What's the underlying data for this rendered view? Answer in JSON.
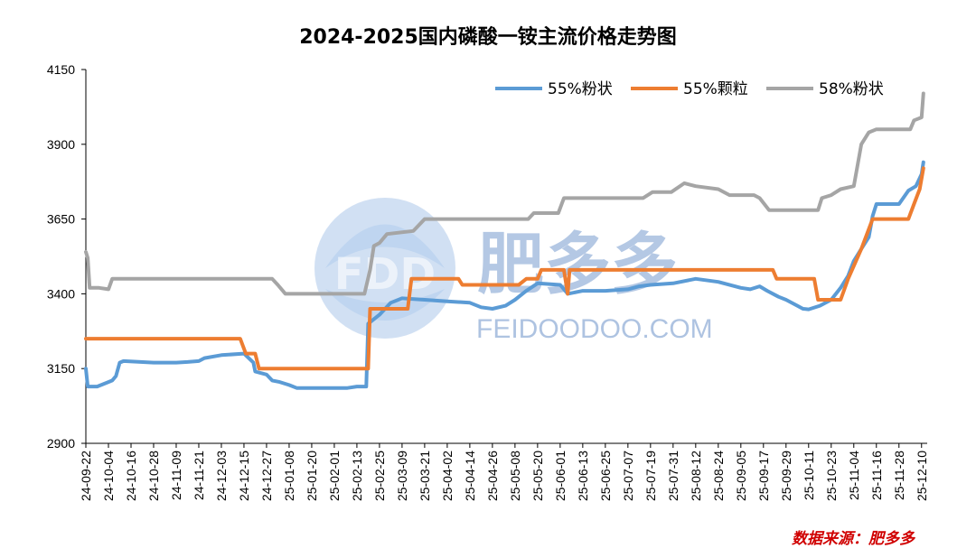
{
  "chart_data": {
    "type": "line",
    "title": "2024-2025国内磷酸一铵主流价格走势图",
    "source": "数据来源：肥多多",
    "ylim": [
      2900,
      4150
    ],
    "yticks": [
      "4150",
      "3900",
      "3650",
      "3400",
      "3150",
      "2900"
    ],
    "xlim": [
      "24-09-22",
      "25-12-13"
    ],
    "x_tick_labels": [
      "24-09-22",
      "24-10-04",
      "24-10-16",
      "24-10-28",
      "24-11-09",
      "24-11-21",
      "24-12-03",
      "24-12-15",
      "24-12-27",
      "25-01-08",
      "25-01-20",
      "25-02-01",
      "25-02-13",
      "25-02-25",
      "25-03-09",
      "25-03-21",
      "25-04-02",
      "25-04-14",
      "25-04-26",
      "25-05-08",
      "25-05-20",
      "25-06-01",
      "25-06-13",
      "25-06-25",
      "25-07-07",
      "25-07-19",
      "25-07-31",
      "25-08-12",
      "25-08-24",
      "25-09-05",
      "25-09-17",
      "25-09-29",
      "25-10-11",
      "25-10-23",
      "25-11-04",
      "25-11-16",
      "25-11-28",
      "25-12-10"
    ],
    "legend_position": "top-right",
    "series": [
      {
        "name": "55%粉状",
        "color": "#5b9bd5",
        "points": [
          [
            "24-09-22",
            3150
          ],
          [
            "24-09-23",
            3090
          ],
          [
            "24-09-28",
            3090
          ],
          [
            "24-10-04",
            3105
          ],
          [
            "24-10-06",
            3110
          ],
          [
            "24-10-08",
            3125
          ],
          [
            "24-10-10",
            3170
          ],
          [
            "24-10-12",
            3175
          ],
          [
            "24-10-28",
            3170
          ],
          [
            "24-11-09",
            3170
          ],
          [
            "24-11-15",
            3172
          ],
          [
            "24-11-21",
            3175
          ],
          [
            "24-11-24",
            3185
          ],
          [
            "24-12-03",
            3195
          ],
          [
            "24-12-15",
            3200
          ],
          [
            "24-12-20",
            3170
          ],
          [
            "24-12-21",
            3140
          ],
          [
            "24-12-27",
            3130
          ],
          [
            "24-12-30",
            3110
          ],
          [
            "25-01-03",
            3105
          ],
          [
            "25-01-08",
            3095
          ],
          [
            "25-01-12",
            3085
          ],
          [
            "25-01-20",
            3085
          ],
          [
            "25-02-08",
            3085
          ],
          [
            "25-02-13",
            3090
          ],
          [
            "25-02-18",
            3090
          ],
          [
            "25-02-19",
            3300
          ],
          [
            "25-02-25",
            3330
          ],
          [
            "25-03-03",
            3370
          ],
          [
            "25-03-09",
            3385
          ],
          [
            "25-03-21",
            3380
          ],
          [
            "25-04-02",
            3375
          ],
          [
            "25-04-14",
            3370
          ],
          [
            "25-04-20",
            3355
          ],
          [
            "25-04-26",
            3350
          ],
          [
            "25-05-03",
            3360
          ],
          [
            "25-05-08",
            3380
          ],
          [
            "25-05-14",
            3410
          ],
          [
            "25-05-20",
            3435
          ],
          [
            "25-06-01",
            3430
          ],
          [
            "25-06-05",
            3400
          ],
          [
            "25-06-13",
            3410
          ],
          [
            "25-06-25",
            3410
          ],
          [
            "25-07-07",
            3415
          ],
          [
            "25-07-13",
            3425
          ],
          [
            "25-07-19",
            3430
          ],
          [
            "25-07-31",
            3435
          ],
          [
            "25-08-12",
            3450
          ],
          [
            "25-08-24",
            3440
          ],
          [
            "25-09-05",
            3420
          ],
          [
            "25-09-10",
            3415
          ],
          [
            "25-09-15",
            3425
          ],
          [
            "25-09-19",
            3410
          ],
          [
            "25-09-25",
            3390
          ],
          [
            "25-09-29",
            3380
          ],
          [
            "25-10-05",
            3360
          ],
          [
            "25-10-08",
            3350
          ],
          [
            "25-10-11",
            3348
          ],
          [
            "25-10-17",
            3360
          ],
          [
            "25-10-23",
            3380
          ],
          [
            "25-10-28",
            3420
          ],
          [
            "25-11-01",
            3460
          ],
          [
            "25-11-04",
            3510
          ],
          [
            "25-11-08",
            3550
          ],
          [
            "25-11-12",
            3590
          ],
          [
            "25-11-14",
            3660
          ],
          [
            "25-11-16",
            3700
          ],
          [
            "25-11-28",
            3700
          ],
          [
            "25-12-03",
            3745
          ],
          [
            "25-12-07",
            3760
          ],
          [
            "25-12-10",
            3800
          ],
          [
            "25-12-11",
            3840
          ]
        ]
      },
      {
        "name": "55%颗粒",
        "color": "#ed7d31",
        "points": [
          [
            "24-09-22",
            3250
          ],
          [
            "24-12-13",
            3250
          ],
          [
            "24-12-16",
            3200
          ],
          [
            "24-12-21",
            3200
          ],
          [
            "24-12-23",
            3150
          ],
          [
            "25-01-08",
            3150
          ],
          [
            "25-02-15",
            3150
          ],
          [
            "25-02-19",
            3150
          ],
          [
            "25-02-20",
            3350
          ],
          [
            "25-02-25",
            3350
          ],
          [
            "25-03-12",
            3350
          ],
          [
            "25-03-14",
            3450
          ],
          [
            "25-04-02",
            3450
          ],
          [
            "25-04-08",
            3450
          ],
          [
            "25-04-10",
            3430
          ],
          [
            "25-05-10",
            3430
          ],
          [
            "25-05-14",
            3450
          ],
          [
            "25-05-20",
            3450
          ],
          [
            "25-05-22",
            3480
          ],
          [
            "25-06-03",
            3480
          ],
          [
            "25-06-05",
            3400
          ],
          [
            "25-06-06",
            3480
          ],
          [
            "25-09-22",
            3480
          ],
          [
            "25-09-24",
            3450
          ],
          [
            "25-10-14",
            3450
          ],
          [
            "25-10-16",
            3380
          ],
          [
            "25-10-28",
            3380
          ],
          [
            "25-11-01",
            3450
          ],
          [
            "25-11-08",
            3550
          ],
          [
            "25-11-14",
            3650
          ],
          [
            "25-12-03",
            3650
          ],
          [
            "25-12-06",
            3700
          ],
          [
            "25-12-09",
            3750
          ],
          [
            "25-12-11",
            3820
          ]
        ]
      },
      {
        "name": "58%粉状",
        "color": "#a5a5a5",
        "points": [
          [
            "24-09-22",
            3540
          ],
          [
            "24-09-23",
            3520
          ],
          [
            "24-09-24",
            3420
          ],
          [
            "24-09-29",
            3420
          ],
          [
            "24-10-04",
            3415
          ],
          [
            "24-10-06",
            3450
          ],
          [
            "24-12-24",
            3450
          ],
          [
            "24-12-30",
            3450
          ],
          [
            "25-01-02",
            3430
          ],
          [
            "25-01-06",
            3400
          ],
          [
            "25-02-17",
            3400
          ],
          [
            "25-02-20",
            3480
          ],
          [
            "25-02-22",
            3560
          ],
          [
            "25-02-25",
            3570
          ],
          [
            "25-03-01",
            3600
          ],
          [
            "25-03-15",
            3610
          ],
          [
            "25-03-21",
            3650
          ],
          [
            "25-05-15",
            3650
          ],
          [
            "25-05-18",
            3670
          ],
          [
            "25-05-31",
            3670
          ],
          [
            "25-06-03",
            3720
          ],
          [
            "25-07-15",
            3720
          ],
          [
            "25-07-20",
            3740
          ],
          [
            "25-07-30",
            3740
          ],
          [
            "25-08-06",
            3770
          ],
          [
            "25-08-12",
            3760
          ],
          [
            "25-08-24",
            3750
          ],
          [
            "25-08-30",
            3730
          ],
          [
            "25-09-05",
            3730
          ],
          [
            "25-09-12",
            3730
          ],
          [
            "25-09-15",
            3720
          ],
          [
            "25-09-20",
            3680
          ],
          [
            "25-10-11",
            3680
          ],
          [
            "25-10-16",
            3680
          ],
          [
            "25-10-18",
            3720
          ],
          [
            "25-10-23",
            3730
          ],
          [
            "25-10-28",
            3750
          ],
          [
            "25-11-04",
            3760
          ],
          [
            "25-11-08",
            3900
          ],
          [
            "25-11-12",
            3940
          ],
          [
            "25-11-16",
            3950
          ],
          [
            "25-11-28",
            3950
          ],
          [
            "25-12-04",
            3950
          ],
          [
            "25-12-06",
            3980
          ],
          [
            "25-12-10",
            3990
          ],
          [
            "25-12-11",
            4070
          ]
        ]
      }
    ]
  },
  "watermark": {
    "badge_text": "FDD",
    "brand": "肥多多",
    "url": "FEIDOODOO.COM"
  },
  "colors": {
    "axis": "#000000",
    "series_blue": "#5b9bd5",
    "series_orange": "#ed7d31",
    "series_gray": "#a5a5a5",
    "source_red": "#d00000"
  }
}
